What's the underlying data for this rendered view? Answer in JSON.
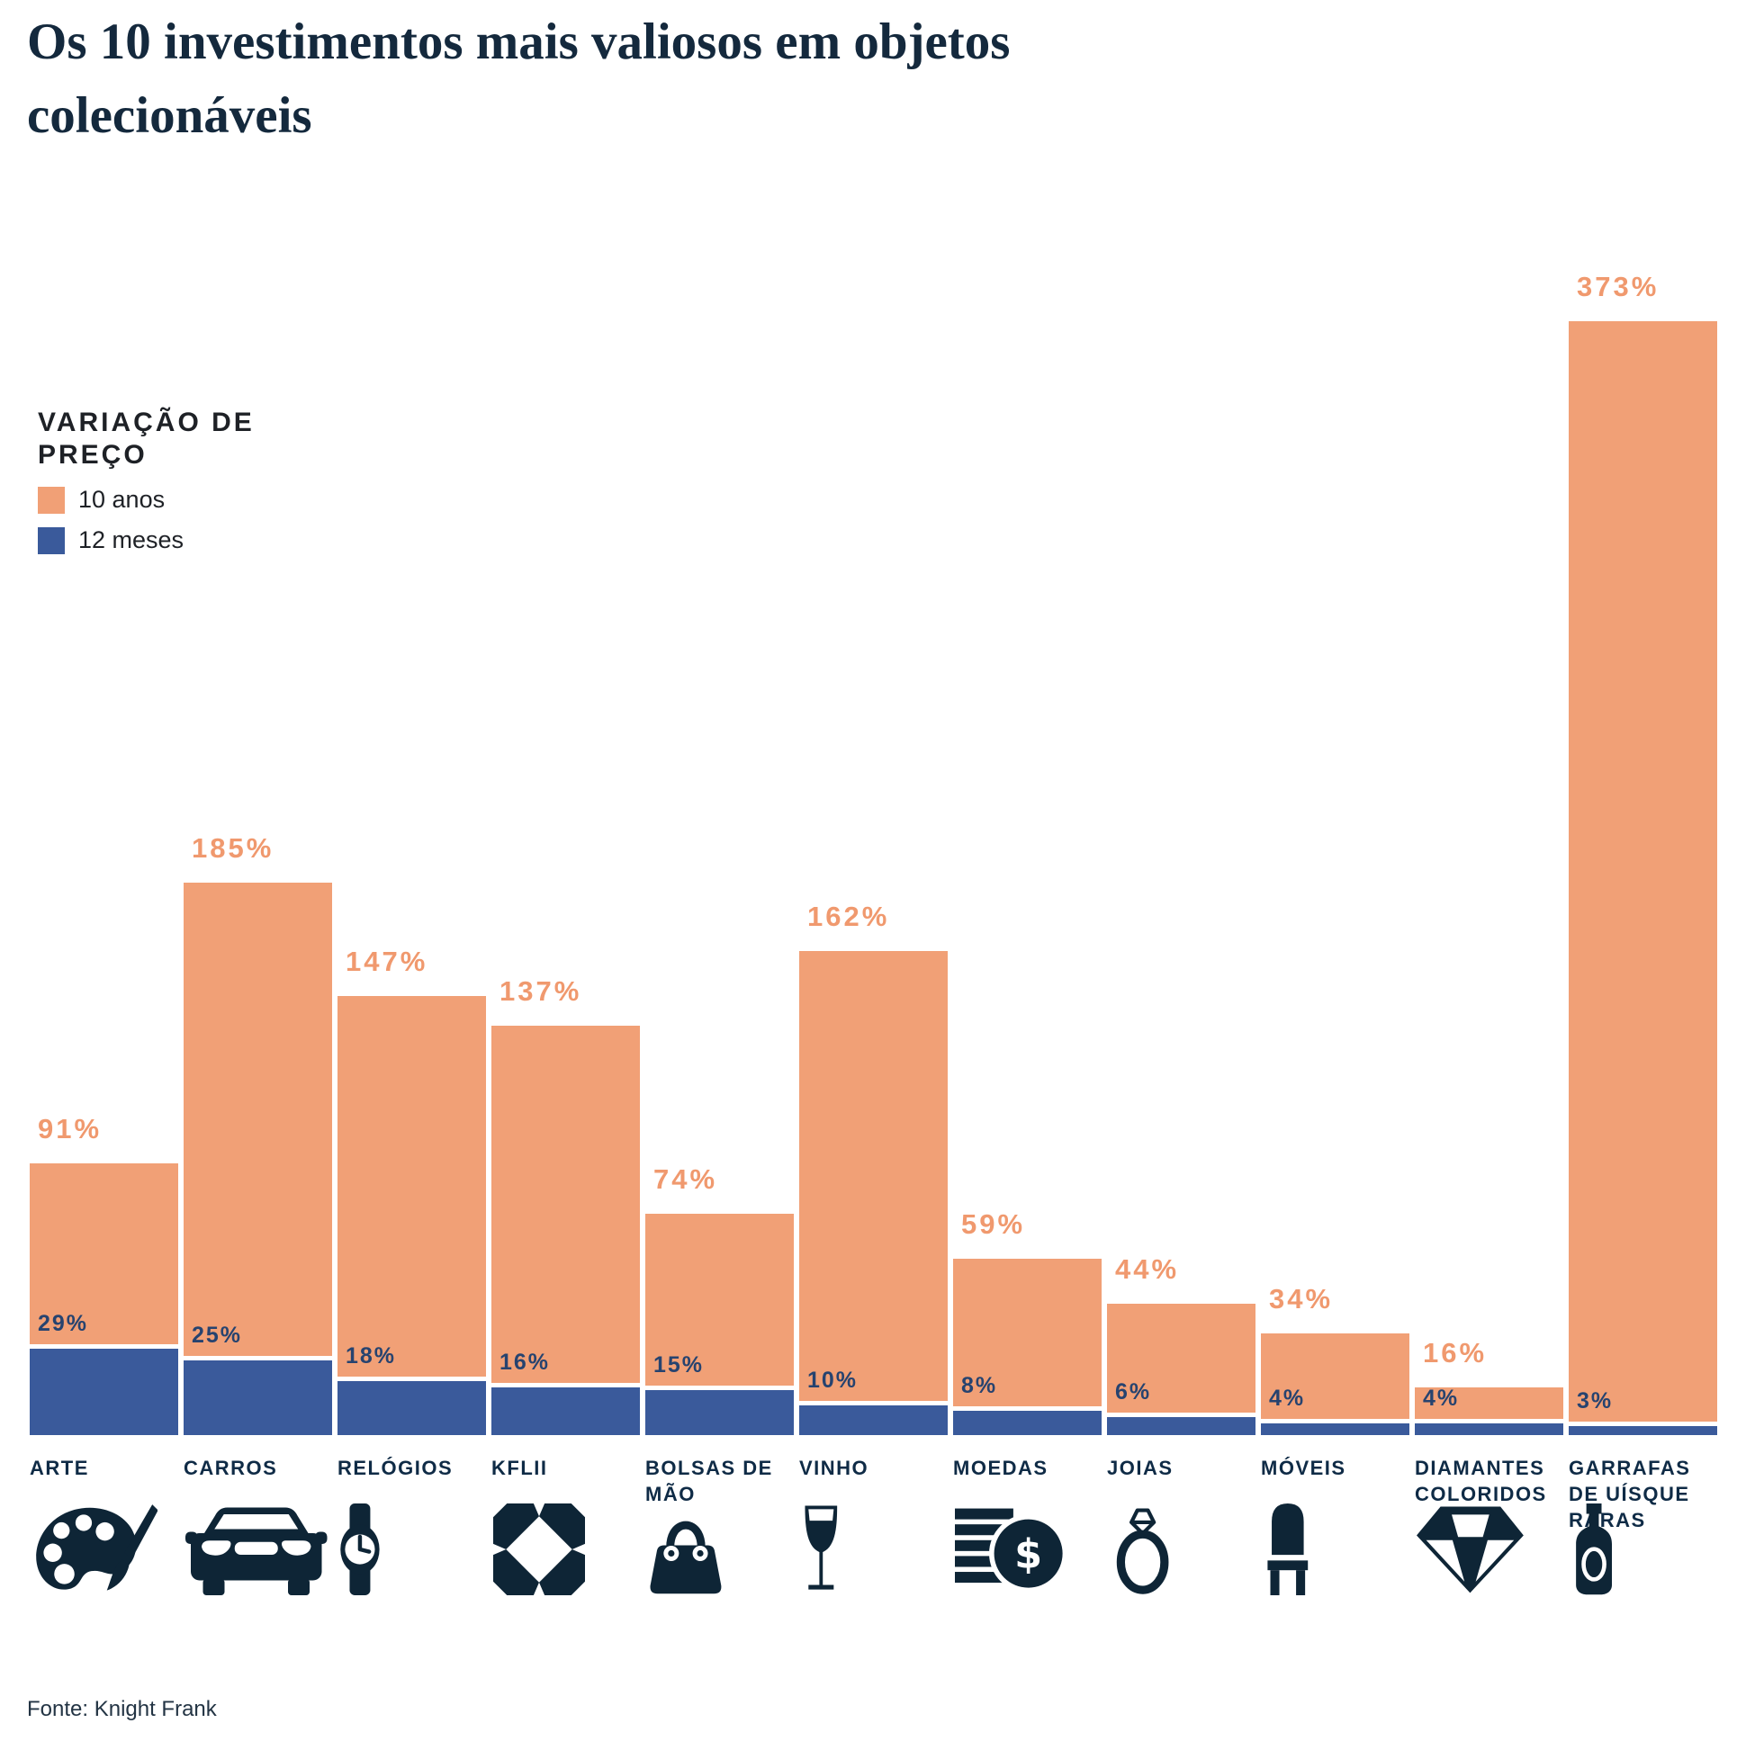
{
  "title": "Os 10 investimentos mais valiosos em objetos colecionáveis",
  "legend": {
    "title": "VARIAÇÃO DE\nPREÇO",
    "items": [
      {
        "label": "10 anos",
        "color": "#F1A076"
      },
      {
        "label": "12 meses",
        "color": "#3A5A9B"
      }
    ]
  },
  "source": "Fonte: Knight Frank",
  "colors": {
    "bar_10_anos": "#F1A076",
    "bar_12_meses": "#3A5A9B",
    "label_10_anos": "#F0996E",
    "label_12_meses": "#27436F",
    "category_label": "#0F2B46",
    "icon": "#0E2536",
    "title": "#14293D"
  },
  "chart_data": {
    "type": "bar",
    "title": "Os 10 investimentos mais valiosos em objetos colecionáveis",
    "unit": "%",
    "value_suffix": "%",
    "ylim": [
      0,
      373
    ],
    "grid": false,
    "legend_position": "upper-left",
    "categories": [
      "ARTE",
      "CARROS",
      "RELÓGIOS",
      "KFLII",
      "BOLSAS DE MÃO",
      "VINHO",
      "MOEDAS",
      "JOIAS",
      "MÓVEIS",
      "DIAMANTES COLORIDOS",
      "GARRAFAS DE UÍSQUE RARAS"
    ],
    "series": [
      {
        "name": "10 anos",
        "color": "#F1A076",
        "values": [
          91,
          185,
          147,
          137,
          74,
          162,
          59,
          44,
          34,
          16,
          373
        ]
      },
      {
        "name": "12 meses",
        "color": "#3A5A9B",
        "values": [
          29,
          25,
          18,
          16,
          15,
          10,
          8,
          6,
          4,
          4,
          3
        ]
      }
    ],
    "icons": [
      "palette-icon",
      "car-icon",
      "watch-icon",
      "kflii-logo-icon",
      "handbag-icon",
      "wine-glass-icon",
      "coins-icon",
      "ring-icon",
      "chair-icon",
      "diamond-icon",
      "whisky-bottle-icon"
    ]
  }
}
